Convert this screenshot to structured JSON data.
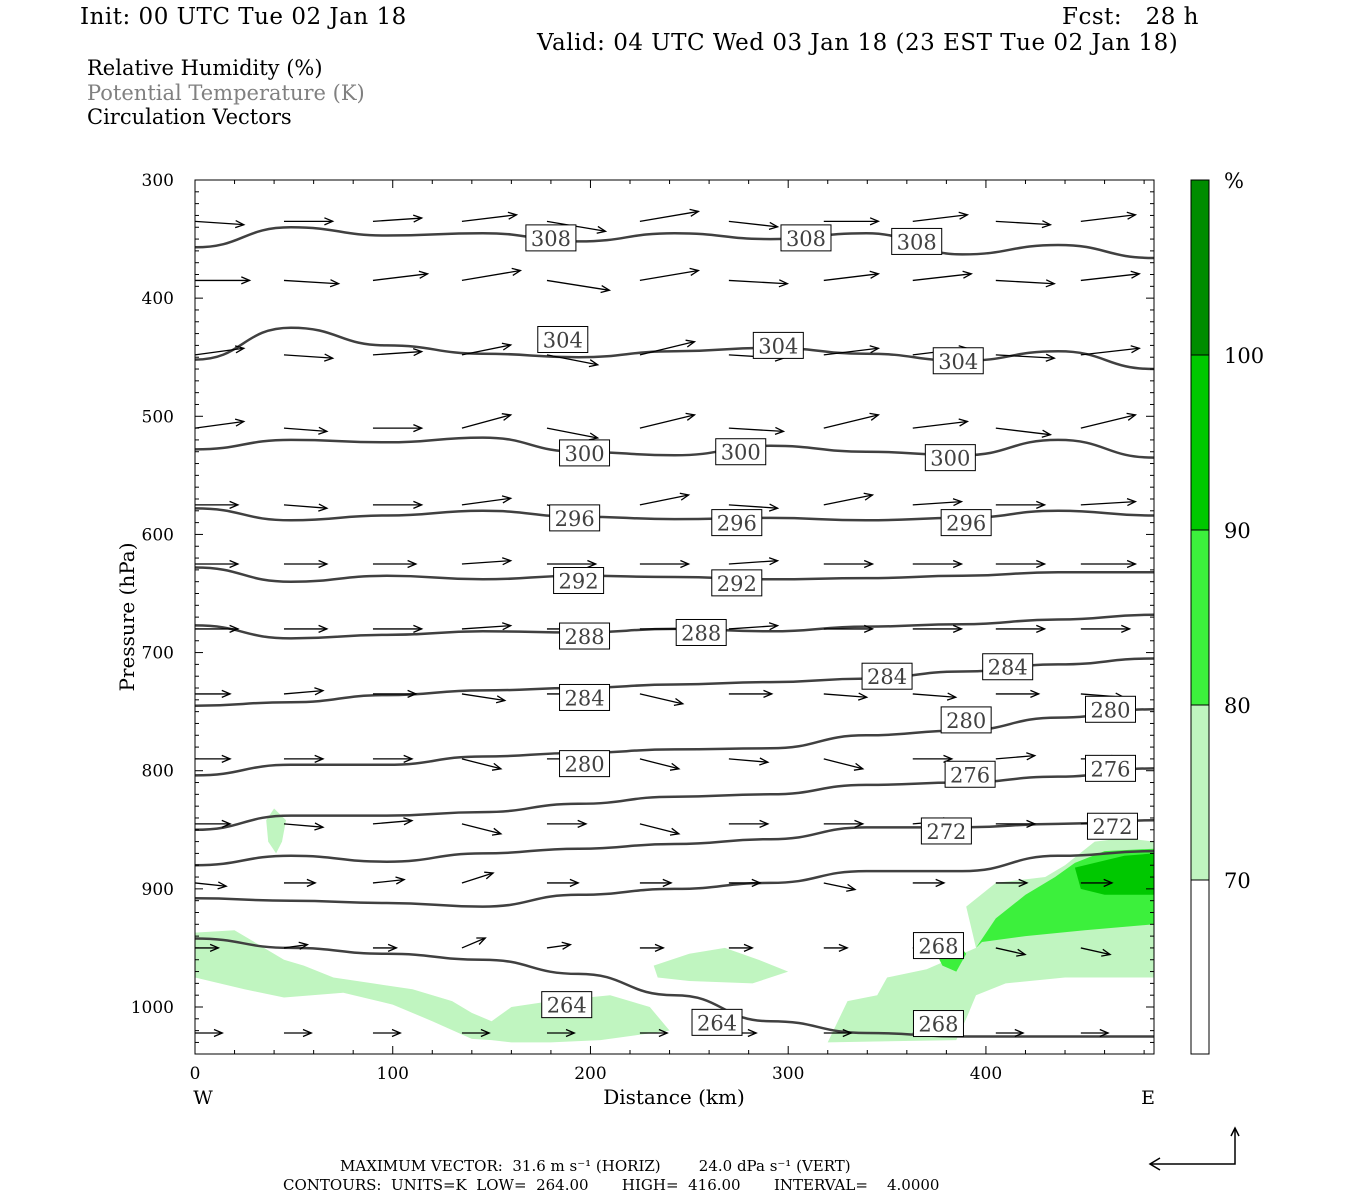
{
  "header": {
    "init": "Init: 00 UTC Tue 02 Jan 18",
    "fcst": "Fcst:   28 h",
    "valid": "Valid: 04 UTC Wed 03 Jan 18 (23 EST Tue 02 Jan 18)"
  },
  "legend": {
    "line1": "Relative Humidity (%)",
    "line2": "Potential Temperature (K)",
    "line3": "Circulation Vectors"
  },
  "footer": {
    "max_vector": "MAXIMUM VECTOR:  31.6 m s⁻¹ (HORIZ)        24.0 dPa s⁻¹ (VERT)",
    "contours": "CONTOURS:  UNITS=K  LOW=  264.00       HIGH=  416.00       INTERVAL=    4.0000"
  },
  "colors": {
    "rh_70_80": "#c0f5c0",
    "rh_80_90": "#3cf03c",
    "rh_90_100": "#00c800",
    "rh_100": "#008c00",
    "contour": "#404040"
  },
  "chart_data": {
    "type": "cross-section",
    "xlabel": "Distance (km)",
    "ylabel": "Pressure (hPa)",
    "xlim": [
      0,
      485
    ],
    "ylim": [
      1040,
      300
    ],
    "x_ticks": [
      0,
      100,
      200,
      300,
      400
    ],
    "y_ticks": [
      300,
      400,
      500,
      600,
      700,
      800,
      900,
      1000
    ],
    "x_end_labels": {
      "left": "W",
      "right": "E"
    },
    "colorbar": {
      "unit": "%",
      "levels": [
        70,
        80,
        90,
        100
      ],
      "labels": [
        "70",
        "80",
        "90",
        "100"
      ]
    },
    "theta_contours": [
      {
        "theta": 308,
        "p": [
          357,
          340,
          347,
          345,
          352,
          345,
          350,
          345,
          363,
          355,
          366
        ]
      },
      {
        "theta": 304,
        "p": [
          452,
          425,
          440,
          447,
          450,
          445,
          442,
          447,
          453,
          445,
          460
        ]
      },
      {
        "theta": 300,
        "p": [
          528,
          520,
          522,
          518,
          530,
          533,
          525,
          530,
          533,
          520,
          535
        ]
      },
      {
        "theta": 296,
        "p": [
          578,
          588,
          584,
          580,
          585,
          587,
          586,
          588,
          586,
          580,
          584
        ]
      },
      {
        "theta": 292,
        "p": [
          628,
          640,
          635,
          638,
          635,
          636,
          638,
          637,
          635,
          632,
          632
        ]
      },
      {
        "theta": 288,
        "p": [
          677,
          688,
          685,
          682,
          683,
          680,
          682,
          678,
          676,
          672,
          668
        ]
      },
      {
        "theta": 284,
        "p": [
          745,
          742,
          736,
          732,
          730,
          727,
          725,
          722,
          716,
          710,
          705
        ]
      },
      {
        "theta": 280,
        "p": [
          804,
          795,
          795,
          788,
          785,
          782,
          781,
          770,
          766,
          755,
          748
        ]
      },
      {
        "theta": 276,
        "p": [
          850,
          838,
          838,
          835,
          828,
          822,
          820,
          812,
          810,
          805,
          798
        ]
      },
      {
        "theta": 272,
        "p": [
          880,
          872,
          877,
          870,
          866,
          862,
          858,
          848,
          848,
          845,
          842
        ]
      },
      {
        "theta": 268,
        "p": [
          908,
          910,
          912,
          915,
          905,
          900,
          895,
          885,
          885,
          872,
          868
        ]
      },
      {
        "theta": 264,
        "p": [
          942,
          950,
          955,
          960,
          972,
          990,
          1012,
          1022,
          1025,
          1025,
          1025
        ]
      }
    ],
    "contour_labels": [
      {
        "text": "308",
        "x": 180,
        "p": 349
      },
      {
        "text": "308",
        "x": 309,
        "p": 349
      },
      {
        "text": "308",
        "x": 365,
        "p": 352
      },
      {
        "text": "304",
        "x": 186,
        "p": 435
      },
      {
        "text": "304",
        "x": 295,
        "p": 440
      },
      {
        "text": "304",
        "x": 386,
        "p": 453
      },
      {
        "text": "300",
        "x": 197,
        "p": 531
      },
      {
        "text": "300",
        "x": 276,
        "p": 530
      },
      {
        "text": "300",
        "x": 382,
        "p": 535
      },
      {
        "text": "296",
        "x": 192,
        "p": 586
      },
      {
        "text": "296",
        "x": 274,
        "p": 590
      },
      {
        "text": "296",
        "x": 390,
        "p": 590
      },
      {
        "text": "292",
        "x": 194,
        "p": 639
      },
      {
        "text": "292",
        "x": 274,
        "p": 641
      },
      {
        "text": "288",
        "x": 197,
        "p": 686
      },
      {
        "text": "288",
        "x": 256,
        "p": 683
      },
      {
        "text": "284",
        "x": 197,
        "p": 738
      },
      {
        "text": "284",
        "x": 350,
        "p": 720
      },
      {
        "text": "284",
        "x": 411,
        "p": 712
      },
      {
        "text": "280",
        "x": 197,
        "p": 794
      },
      {
        "text": "280",
        "x": 390,
        "p": 757
      },
      {
        "text": "280",
        "x": 463,
        "p": 748
      },
      {
        "text": "276",
        "x": 392,
        "p": 803
      },
      {
        "text": "276",
        "x": 463,
        "p": 798
      },
      {
        "text": "272",
        "x": 380,
        "p": 851
      },
      {
        "text": "272",
        "x": 464,
        "p": 847
      },
      {
        "text": "268",
        "x": 376,
        "p": 948
      },
      {
        "text": "268",
        "x": 376,
        "p": 1014
      },
      {
        "text": "264",
        "x": 188,
        "p": 998
      },
      {
        "text": "264",
        "x": 264,
        "p": 1013
      }
    ],
    "rh_regions": [
      {
        "level": 70,
        "points": [
          [
            0,
            937
          ],
          [
            20,
            935
          ],
          [
            45,
            960
          ],
          [
            55,
            965
          ],
          [
            70,
            975
          ],
          [
            90,
            980
          ],
          [
            110,
            985
          ],
          [
            130,
            995
          ],
          [
            140,
            1005
          ],
          [
            150,
            1012
          ],
          [
            160,
            1000
          ],
          [
            180,
            995
          ],
          [
            210,
            990
          ],
          [
            230,
            1000
          ],
          [
            240,
            1020
          ],
          [
            205,
            1028
          ],
          [
            180,
            1030
          ],
          [
            160,
            1030
          ],
          [
            150,
            1028
          ],
          [
            140,
            1027
          ],
          [
            120,
            1012
          ],
          [
            100,
            998
          ],
          [
            75,
            988
          ],
          [
            45,
            992
          ],
          [
            25,
            985
          ],
          [
            0,
            975
          ]
        ]
      },
      {
        "level": 70,
        "points": [
          [
            232,
            965
          ],
          [
            250,
            955
          ],
          [
            268,
            950
          ],
          [
            285,
            960
          ],
          [
            300,
            970
          ],
          [
            282,
            980
          ],
          [
            250,
            978
          ],
          [
            234,
            975
          ]
        ]
      },
      {
        "level": 70,
        "points": [
          [
            40,
            832
          ],
          [
            46,
            842
          ],
          [
            44,
            860
          ],
          [
            41,
            870
          ],
          [
            37,
            860
          ],
          [
            36,
            842
          ]
        ]
      },
      {
        "level": 70,
        "points": [
          [
            320,
            1030
          ],
          [
            330,
            995
          ],
          [
            345,
            990
          ],
          [
            350,
            975
          ],
          [
            370,
            968
          ],
          [
            395,
            950
          ],
          [
            420,
            945
          ],
          [
            450,
            930
          ],
          [
            485,
            920
          ],
          [
            485,
            975
          ],
          [
            440,
            975
          ],
          [
            410,
            980
          ],
          [
            395,
            990
          ],
          [
            390,
            1010
          ],
          [
            385,
            1028
          ]
        ]
      },
      {
        "level": 70,
        "points": [
          [
            390,
            915
          ],
          [
            405,
            895
          ],
          [
            430,
            890
          ],
          [
            440,
            880
          ],
          [
            455,
            860
          ],
          [
            470,
            857
          ],
          [
            485,
            860
          ],
          [
            485,
            925
          ],
          [
            430,
            945
          ],
          [
            395,
            950
          ]
        ]
      },
      {
        "level": 80,
        "points": [
          [
            395,
            950
          ],
          [
            405,
            925
          ],
          [
            420,
            905
          ],
          [
            435,
            890
          ],
          [
            445,
            878
          ],
          [
            460,
            868
          ],
          [
            485,
            866
          ],
          [
            485,
            930
          ],
          [
            450,
            935
          ],
          [
            420,
            940
          ],
          [
            398,
            945
          ]
        ]
      },
      {
        "level": 90,
        "points": [
          [
            445,
            882
          ],
          [
            470,
            872
          ],
          [
            485,
            870
          ],
          [
            485,
            905
          ],
          [
            460,
            905
          ],
          [
            448,
            900
          ]
        ]
      },
      {
        "level": 80,
        "points": [
          [
            375,
            955
          ],
          [
            385,
            945
          ],
          [
            390,
            955
          ],
          [
            385,
            970
          ],
          [
            378,
            965
          ]
        ]
      }
    ],
    "vector_rows": [
      {
        "p": 335,
        "x": [
          0,
          45,
          90,
          135,
          178,
          225,
          270,
          318,
          363,
          405,
          448
        ]
      },
      {
        "p": 385,
        "x": [
          0,
          45,
          90,
          135,
          178,
          225,
          270,
          318,
          363,
          405,
          448
        ]
      },
      {
        "p": 448,
        "x": [
          0,
          45,
          90,
          135,
          178,
          225,
          270,
          318,
          363,
          405,
          448
        ]
      },
      {
        "p": 510,
        "x": [
          0,
          45,
          90,
          135,
          178,
          225,
          270,
          318,
          363,
          405,
          448
        ]
      },
      {
        "p": 575,
        "x": [
          0,
          45,
          90,
          135,
          178,
          225,
          270,
          318,
          363,
          405,
          448
        ]
      },
      {
        "p": 625,
        "x": [
          0,
          45,
          90,
          135,
          178,
          225,
          270,
          318,
          363,
          405,
          448
        ]
      },
      {
        "p": 680,
        "x": [
          0,
          45,
          90,
          135,
          178,
          225,
          270,
          318,
          363,
          405,
          448
        ]
      },
      {
        "p": 735,
        "x": [
          0,
          45,
          90,
          135,
          178,
          225,
          270,
          318,
          363,
          405,
          448
        ]
      },
      {
        "p": 790,
        "x": [
          0,
          45,
          90,
          135,
          178,
          225,
          270,
          318,
          363,
          405,
          448
        ]
      },
      {
        "p": 845,
        "x": [
          0,
          45,
          90,
          135,
          178,
          225,
          270,
          318,
          363,
          405,
          448
        ]
      },
      {
        "p": 895,
        "x": [
          0,
          45,
          90,
          135,
          178,
          225,
          270,
          318,
          363,
          405,
          448
        ]
      },
      {
        "p": 950,
        "x": [
          0,
          45,
          90,
          135,
          178,
          225,
          270,
          318,
          363,
          405,
          448
        ]
      },
      {
        "p": 1022,
        "x": [
          0,
          45,
          90,
          135,
          178,
          225,
          270,
          318,
          363,
          405,
          448
        ]
      }
    ],
    "vectors_u": [
      [
        25,
        25,
        25,
        28,
        30,
        30,
        25,
        28,
        28,
        28,
        28
      ],
      [
        28,
        28,
        28,
        30,
        32,
        30,
        30,
        28,
        30,
        30,
        30
      ],
      [
        25,
        25,
        25,
        25,
        26,
        28,
        28,
        28,
        28,
        30,
        30
      ],
      [
        25,
        22,
        25,
        25,
        26,
        28,
        28,
        28,
        28,
        28,
        28
      ],
      [
        22,
        22,
        25,
        25,
        25,
        25,
        25,
        25,
        25,
        25,
        28
      ],
      [
        22,
        22,
        22,
        25,
        25,
        25,
        25,
        25,
        25,
        25,
        28
      ],
      [
        22,
        22,
        25,
        25,
        25,
        25,
        25,
        25,
        25,
        25,
        25
      ],
      [
        18,
        20,
        22,
        22,
        22,
        22,
        22,
        22,
        22,
        22,
        22
      ],
      [
        18,
        20,
        20,
        20,
        20,
        20,
        20,
        20,
        20,
        20,
        20
      ],
      [
        18,
        20,
        20,
        20,
        20,
        20,
        20,
        20,
        20,
        20,
        20
      ],
      [
        16,
        16,
        16,
        16,
        16,
        16,
        16,
        16,
        16,
        16,
        16
      ],
      [
        12,
        12,
        12,
        12,
        12,
        12,
        12,
        12,
        12,
        15,
        15
      ],
      [
        14,
        14,
        14,
        14,
        14,
        14,
        14,
        14,
        14,
        14,
        14
      ]
    ],
    "vectors_w": [
      [
        3,
        0,
        -3,
        -6,
        9,
        -9,
        5,
        0,
        -6,
        3,
        -6
      ],
      [
        0,
        3,
        -6,
        -9,
        9,
        -9,
        3,
        -6,
        -6,
        3,
        -6
      ],
      [
        -6,
        3,
        -3,
        -9,
        9,
        -12,
        3,
        -6,
        -6,
        3,
        -6
      ],
      [
        -6,
        3,
        0,
        -12,
        9,
        -12,
        3,
        -12,
        -6,
        6,
        -12
      ],
      [
        0,
        3,
        0,
        -6,
        9,
        -9,
        3,
        -9,
        -3,
        0,
        -3
      ],
      [
        0,
        0,
        0,
        -3,
        0,
        0,
        -3,
        0,
        0,
        0,
        0
      ],
      [
        0,
        0,
        0,
        -3,
        0,
        0,
        -3,
        0,
        0,
        0,
        0
      ],
      [
        0,
        -3,
        0,
        6,
        0,
        9,
        0,
        3,
        3,
        0,
        3
      ],
      [
        0,
        0,
        0,
        9,
        0,
        9,
        3,
        9,
        0,
        -3,
        0
      ],
      [
        0,
        3,
        -3,
        9,
        0,
        9,
        0,
        0,
        -3,
        0,
        0
      ],
      [
        3,
        0,
        -3,
        -9,
        0,
        0,
        0,
        6,
        0,
        0,
        0
      ],
      [
        0,
        -3,
        0,
        -9,
        -3,
        0,
        0,
        0,
        0,
        6,
        6
      ],
      [
        0,
        0,
        0,
        0,
        0,
        0,
        0,
        0,
        0,
        0,
        0
      ]
    ]
  }
}
